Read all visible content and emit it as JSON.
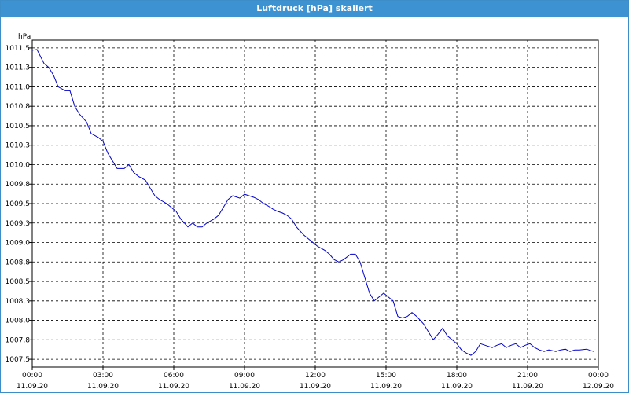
{
  "window": {
    "title": "Luftdruck [hPa] skaliert"
  },
  "colors": {
    "titlebar": "#3d93d2",
    "line": "#0000cc",
    "grid": "#000000"
  },
  "chart_data": {
    "type": "line",
    "title": "Luftdruck [hPa] skaliert",
    "ylabel": "hPa",
    "xlabel": "",
    "xlim": [
      0,
      24
    ],
    "ylim": [
      1007.4,
      1011.6
    ],
    "grid": true,
    "y_ticks": [
      "1011,5",
      "1011,3",
      "1011,0",
      "1010,8",
      "1010,5",
      "1010,3",
      "1010,0",
      "1009,8",
      "1009,5",
      "1009,3",
      "1009,0",
      "1008,8",
      "1008,5",
      "1008,3",
      "1008,0",
      "1007,8",
      "1007,5"
    ],
    "y_tick_values": [
      1011.5,
      1011.25,
      1011.0,
      1010.75,
      1010.5,
      1010.25,
      1010.0,
      1009.75,
      1009.5,
      1009.25,
      1009.0,
      1008.75,
      1008.5,
      1008.25,
      1008.0,
      1007.75,
      1007.5
    ],
    "x_ticks": [
      {
        "time": "00:00",
        "date": "11.09.20"
      },
      {
        "time": "03:00",
        "date": "11.09.20"
      },
      {
        "time": "06:00",
        "date": "11.09.20"
      },
      {
        "time": "09:00",
        "date": "11.09.20"
      },
      {
        "time": "12:00",
        "date": "11.09.20"
      },
      {
        "time": "15:00",
        "date": "11.09.20"
      },
      {
        "time": "18:00",
        "date": "11.09.20"
      },
      {
        "time": "21:00",
        "date": "11.09.20"
      },
      {
        "time": "00:00",
        "date": "12.09.20"
      }
    ],
    "series": [
      {
        "x": [
          0.0,
          0.2,
          0.5,
          0.7,
          0.9,
          1.1,
          1.4,
          1.6,
          1.8,
          2.0,
          2.3,
          2.5,
          2.8,
          3.0,
          3.2,
          3.4,
          3.6,
          3.9,
          4.1,
          4.3,
          4.5,
          4.8,
          5.0,
          5.2,
          5.4,
          5.7,
          5.9,
          6.1,
          6.3,
          6.6,
          6.8,
          7.0,
          7.2,
          7.4,
          7.7,
          7.9,
          8.1,
          8.3,
          8.5,
          8.8,
          9.0,
          9.2,
          9.4,
          9.6,
          9.8,
          10.0,
          10.2,
          10.4,
          10.6,
          10.8,
          11.0,
          11.2,
          11.5,
          11.7,
          11.9,
          12.1,
          12.4,
          12.6,
          12.8,
          13.0,
          13.2,
          13.5,
          13.7,
          13.9,
          14.1,
          14.3,
          14.5,
          14.7,
          14.9,
          15.1,
          15.3,
          15.5,
          15.7,
          15.9,
          16.1,
          16.3,
          16.6,
          16.8,
          17.0,
          17.2,
          17.4,
          17.6,
          17.8,
          18.0,
          18.2,
          18.4,
          18.6,
          18.8,
          19.0,
          19.2,
          19.5,
          19.7,
          19.9,
          20.1,
          20.3,
          20.5,
          20.7,
          20.9,
          21.1,
          21.3,
          21.5,
          21.7,
          21.9,
          22.2,
          22.4,
          22.6,
          22.8,
          23.0,
          23.2,
          23.5,
          23.8
        ],
        "y": [
          1011.47,
          1011.48,
          1011.3,
          1011.25,
          1011.15,
          1011.0,
          1010.95,
          1010.95,
          1010.75,
          1010.65,
          1010.55,
          1010.4,
          1010.35,
          1010.3,
          1010.15,
          1010.05,
          1009.95,
          1009.95,
          1010.0,
          1009.9,
          1009.85,
          1009.8,
          1009.7,
          1009.6,
          1009.55,
          1009.5,
          1009.45,
          1009.4,
          1009.3,
          1009.2,
          1009.25,
          1009.2,
          1009.2,
          1009.25,
          1009.3,
          1009.35,
          1009.45,
          1009.55,
          1009.6,
          1009.57,
          1009.62,
          1009.6,
          1009.58,
          1009.55,
          1009.5,
          1009.47,
          1009.43,
          1009.4,
          1009.38,
          1009.35,
          1009.3,
          1009.2,
          1009.1,
          1009.05,
          1009.0,
          1008.95,
          1008.9,
          1008.85,
          1008.78,
          1008.75,
          1008.78,
          1008.85,
          1008.85,
          1008.75,
          1008.55,
          1008.35,
          1008.25,
          1008.3,
          1008.35,
          1008.3,
          1008.25,
          1008.05,
          1008.03,
          1008.05,
          1008.1,
          1008.05,
          1007.95,
          1007.85,
          1007.75,
          1007.82,
          1007.9,
          1007.8,
          1007.75,
          1007.7,
          1007.62,
          1007.58,
          1007.55,
          1007.6,
          1007.7,
          1007.68,
          1007.65,
          1007.68,
          1007.7,
          1007.65,
          1007.68,
          1007.7,
          1007.65,
          1007.68,
          1007.7,
          1007.65,
          1007.62,
          1007.6,
          1007.62,
          1007.6,
          1007.62,
          1007.63,
          1007.6,
          1007.62,
          1007.62,
          1007.63,
          1007.6
        ]
      }
    ]
  }
}
